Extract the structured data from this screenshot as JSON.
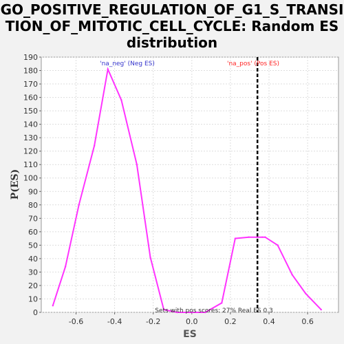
{
  "chart_data": {
    "type": "line",
    "title": "GO_POSITIVE_REGULATION_OF_G1_S_TRANSI\nTION_OF_MITOTIC_CELL_CYCLE: Random ES\ndistribution",
    "xlabel": "ES",
    "ylabel": "P(ES)",
    "xlim": [
      -0.78,
      0.76
    ],
    "ylim": [
      0,
      190
    ],
    "xticks": [
      -0.6,
      -0.4,
      -0.2,
      0.0,
      0.2,
      0.4,
      0.6
    ],
    "xtick_labels": [
      "-0.6",
      "-0.4",
      "-0.2",
      "0.0",
      "0.2",
      "0.4",
      "0.6"
    ],
    "yticks": [
      0,
      10,
      20,
      30,
      40,
      50,
      60,
      70,
      80,
      90,
      100,
      110,
      120,
      130,
      140,
      150,
      160,
      170,
      180,
      190
    ],
    "grid": true,
    "series": [
      {
        "color": "#ff33ff",
        "x": [
          -0.72,
          -0.655,
          -0.585,
          -0.505,
          -0.435,
          -0.365,
          -0.285,
          -0.215,
          -0.145,
          -0.075,
          0.0,
          0.07,
          0.155,
          0.225,
          0.295,
          0.365,
          0.38,
          0.445,
          0.52,
          0.59,
          0.67
        ],
        "y": [
          5,
          34,
          80,
          124,
          181,
          158,
          110,
          41,
          2,
          0,
          0,
          0,
          7,
          55,
          56,
          56,
          56,
          50,
          28,
          14,
          2
        ]
      }
    ],
    "real_es": 0.34,
    "real_es_color": "#000000",
    "annotations": {
      "neg_label": "'na_neg' (Neg ES)",
      "neg_color": "#3333cc",
      "pos_label": "'na_pos' (Pos ES)",
      "pos_color": "#ff2222",
      "footer": "Sets with pos scores: 27%   Real ES 0.3"
    }
  }
}
